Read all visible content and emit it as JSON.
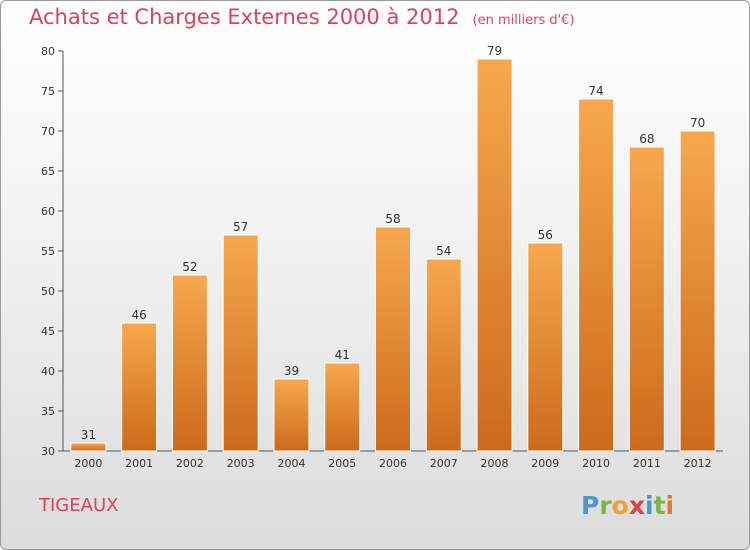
{
  "header": {
    "title": "Achats et Charges Externes 2000 à 2012",
    "unit": "(en milliers d'€)"
  },
  "footer": {
    "commune": "TIGEAUX",
    "logo_letters": [
      "P",
      "r",
      "o",
      "x",
      "i",
      "t",
      "i"
    ]
  },
  "colors": {
    "bar_top": "#f7a84e",
    "bar_bottom": "#cc6a1c",
    "title": "#e0405a"
  },
  "chart_data": {
    "type": "bar",
    "title": "Achats et Charges Externes 2000 à 2012",
    "subtitle": "(en milliers d'€)",
    "xlabel": "",
    "ylabel": "",
    "categories": [
      "2000",
      "2001",
      "2002",
      "2003",
      "2004",
      "2005",
      "2006",
      "2007",
      "2008",
      "2009",
      "2010",
      "2011",
      "2012"
    ],
    "values": [
      31,
      46,
      52,
      57,
      39,
      41,
      58,
      54,
      79,
      56,
      74,
      68,
      70
    ],
    "ylim": [
      30,
      80
    ],
    "yticks": [
      30,
      35,
      40,
      45,
      50,
      55,
      60,
      65,
      70,
      75,
      80
    ],
    "grid": false,
    "legend": "none"
  }
}
